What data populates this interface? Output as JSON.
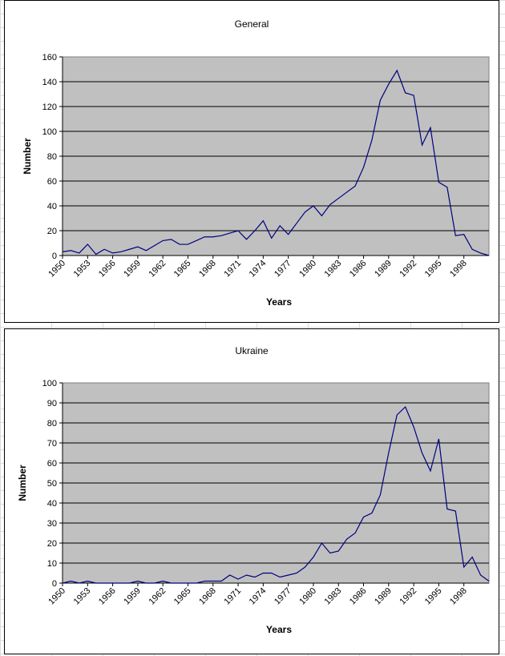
{
  "chart_data": [
    {
      "type": "line",
      "title": "General",
      "xlabel": "Years",
      "ylabel": "Number",
      "ylim": [
        0,
        160
      ],
      "yticks": [
        "0",
        "20",
        "40",
        "60",
        "80",
        "100",
        "120",
        "140",
        "160"
      ],
      "xtick_labels": [
        "1950",
        "1953",
        "1956",
        "1959",
        "1962",
        "1965",
        "1968",
        "1971",
        "1974",
        "1977",
        "1980",
        "1983",
        "1986",
        "1989",
        "1992",
        "1995",
        "1998"
      ],
      "x": [
        1950,
        1951,
        1952,
        1953,
        1954,
        1955,
        1956,
        1957,
        1958,
        1959,
        1960,
        1961,
        1962,
        1963,
        1964,
        1965,
        1966,
        1967,
        1968,
        1969,
        1970,
        1971,
        1972,
        1973,
        1974,
        1975,
        1976,
        1977,
        1978,
        1979,
        1980,
        1981,
        1982,
        1983,
        1984,
        1985,
        1986,
        1987,
        1988,
        1989,
        1990,
        1991,
        1992,
        1993,
        1994,
        1995,
        1996,
        1997,
        1998,
        1999,
        2000,
        2001
      ],
      "series": [
        {
          "values": [
            3,
            4,
            2,
            9,
            1,
            5,
            2,
            3,
            5,
            7,
            4,
            8,
            12,
            13,
            9,
            9,
            12,
            15,
            15,
            16,
            18,
            20,
            13,
            20,
            28,
            14,
            24,
            17,
            26,
            35,
            40,
            32,
            41,
            46,
            51,
            56,
            71,
            93,
            125,
            138,
            149,
            131,
            129,
            89,
            103,
            59,
            55,
            16,
            17,
            5,
            2,
            0
          ]
        }
      ],
      "grid": true,
      "plot_background": "#c0c0c0",
      "line_color": "#000080"
    },
    {
      "type": "line",
      "title": "Ukraine",
      "xlabel": "Years",
      "ylabel": "Number",
      "ylim": [
        0,
        100
      ],
      "yticks": [
        "0",
        "10",
        "20",
        "30",
        "40",
        "50",
        "60",
        "70",
        "80",
        "90",
        "100"
      ],
      "xtick_labels": [
        "1950",
        "1953",
        "1956",
        "1959",
        "1962",
        "1965",
        "1968",
        "1971",
        "1974",
        "1977",
        "1980",
        "1983",
        "1986",
        "1989",
        "1992",
        "1995",
        "1998"
      ],
      "x": [
        1950,
        1951,
        1952,
        1953,
        1954,
        1955,
        1956,
        1957,
        1958,
        1959,
        1960,
        1961,
        1962,
        1963,
        1964,
        1965,
        1966,
        1967,
        1968,
        1969,
        1970,
        1971,
        1972,
        1973,
        1974,
        1975,
        1976,
        1977,
        1978,
        1979,
        1980,
        1981,
        1982,
        1983,
        1984,
        1985,
        1986,
        1987,
        1988,
        1989,
        1990,
        1991,
        1992,
        1993,
        1994,
        1995,
        1996,
        1997,
        1998,
        1999,
        2000,
        2001
      ],
      "series": [
        {
          "values": [
            0,
            1,
            0,
            1,
            0,
            0,
            0,
            0,
            0,
            1,
            0,
            0,
            1,
            0,
            0,
            0,
            0,
            1,
            1,
            1,
            4,
            2,
            4,
            3,
            5,
            5,
            3,
            4,
            5,
            8,
            13,
            20,
            15,
            16,
            22,
            25,
            33,
            35,
            44,
            65,
            84,
            88,
            78,
            65,
            56,
            72,
            37,
            36,
            8,
            13,
            4,
            1
          ]
        }
      ],
      "grid": true,
      "plot_background": "#c0c0c0",
      "line_color": "#000080"
    }
  ]
}
